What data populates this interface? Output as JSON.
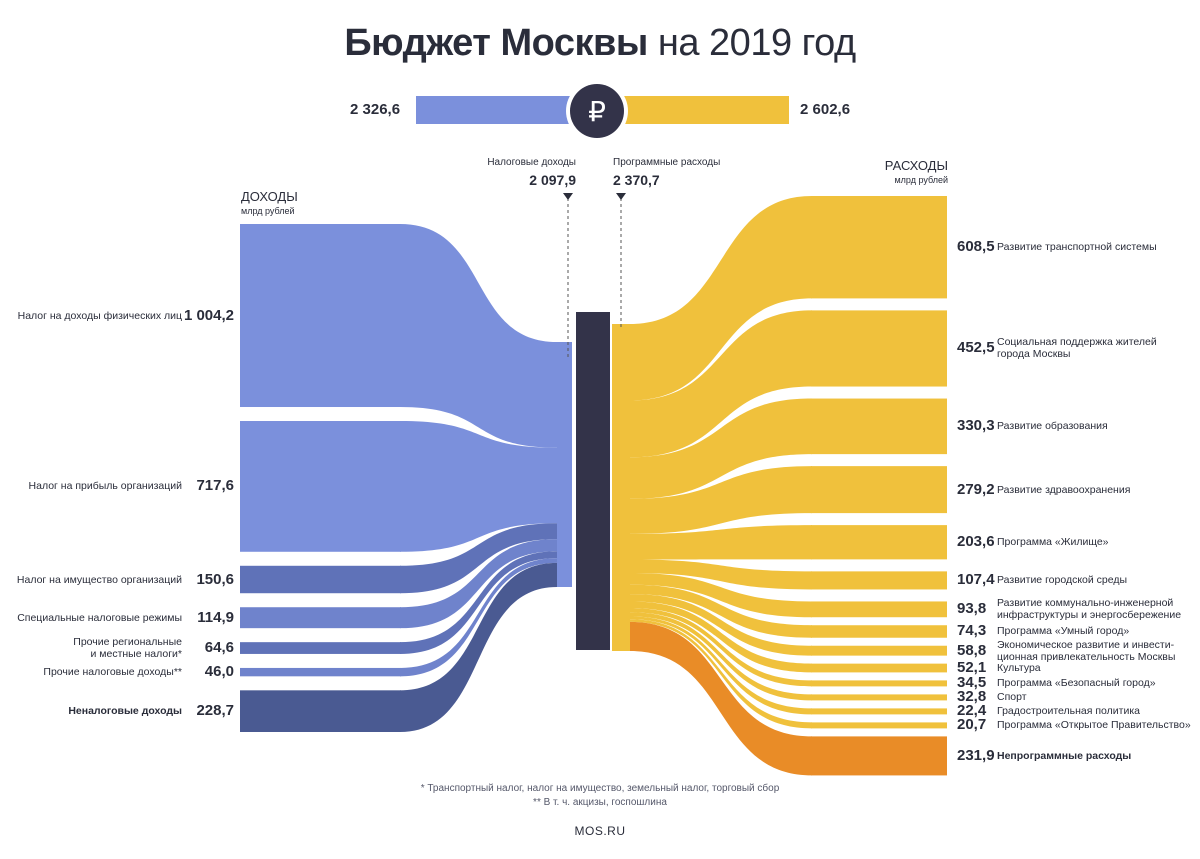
{
  "title": {
    "bold": "Бюджет Москвы",
    "light": "на 2019 год"
  },
  "totals": {
    "income": "2 326,6",
    "expense": "2 602,6",
    "currency_symbol": "₽"
  },
  "income_header": {
    "title": "ДОХОДЫ",
    "unit": "млрд рублей"
  },
  "expense_header": {
    "title": "РАСХОДЫ",
    "unit": "млрд рублей"
  },
  "tax_income": {
    "label": "Налоговые доходы",
    "value": "2 097,9"
  },
  "program_expense": {
    "label": "Программные расходы",
    "value": "2 370,7"
  },
  "colors": {
    "income": "#7b90dc",
    "income_dark": "#4a5a92",
    "expense": "#f0c13c",
    "expense_dark": "#e98c27",
    "center": "#333349"
  },
  "chart_data": {
    "type": "sankey",
    "income": [
      {
        "label": "Налог на доходы физических лиц",
        "value": 1004.2,
        "value_text": "1 004,2"
      },
      {
        "label": "Налог на прибыль организаций",
        "value": 717.6,
        "value_text": "717,6"
      },
      {
        "label": "Налог на имущество организаций",
        "value": 150.6,
        "value_text": "150,6"
      },
      {
        "label": "Специальные налоговые режимы",
        "value": 114.9,
        "value_text": "114,9"
      },
      {
        "label": "Прочие региональные\nи местные налоги*",
        "value": 64.6,
        "value_text": "64,6"
      },
      {
        "label": "Прочие налоговые доходы**",
        "value": 46.0,
        "value_text": "46,0"
      },
      {
        "label": "Неналоговые доходы",
        "value": 228.7,
        "value_text": "228,7",
        "bold": true
      }
    ],
    "expenses": [
      {
        "label": "Развитие транспортной системы",
        "value": 608.5,
        "value_text": "608,5"
      },
      {
        "label": "Социальная поддержка жителей\nгорода Москвы",
        "value": 452.5,
        "value_text": "452,5"
      },
      {
        "label": "Развитие образования",
        "value": 330.3,
        "value_text": "330,3"
      },
      {
        "label": "Развитие здравоохранения",
        "value": 279.2,
        "value_text": "279,2"
      },
      {
        "label": "Программа «Жилище»",
        "value": 203.6,
        "value_text": "203,6"
      },
      {
        "label": "Развитие городской среды",
        "value": 107.4,
        "value_text": "107,4"
      },
      {
        "label": "Развитие коммунально-инженерной\nинфраструктуры и энергосбережение",
        "value": 93.8,
        "value_text": "93,8"
      },
      {
        "label": "Программа «Умный город»",
        "value": 74.3,
        "value_text": "74,3"
      },
      {
        "label": "Экономическое развитие и инвести-\nционная привлекательность Москвы",
        "value": 58.8,
        "value_text": "58,8"
      },
      {
        "label": "Культура",
        "value": 52.1,
        "value_text": "52,1"
      },
      {
        "label": "Программа «Безопасный город»",
        "value": 34.5,
        "value_text": "34,5"
      },
      {
        "label": "Спорт",
        "value": 32.8,
        "value_text": "32,8"
      },
      {
        "label": "Градостроительная политика",
        "value": 22.4,
        "value_text": "22,4"
      },
      {
        "label": "Программа «Открытое Правительство»",
        "value": 20.7,
        "value_text": "20,7"
      },
      {
        "label": "Непрограммные расходы",
        "value": 231.9,
        "value_text": "231,9",
        "bold": true
      }
    ]
  },
  "footnotes": [
    "* Транспортный налог, налог на имущество, земельный налог, торговый сбор",
    "** В т. ч. акцизы, госпошлина"
  ],
  "source": "MOS.RU"
}
